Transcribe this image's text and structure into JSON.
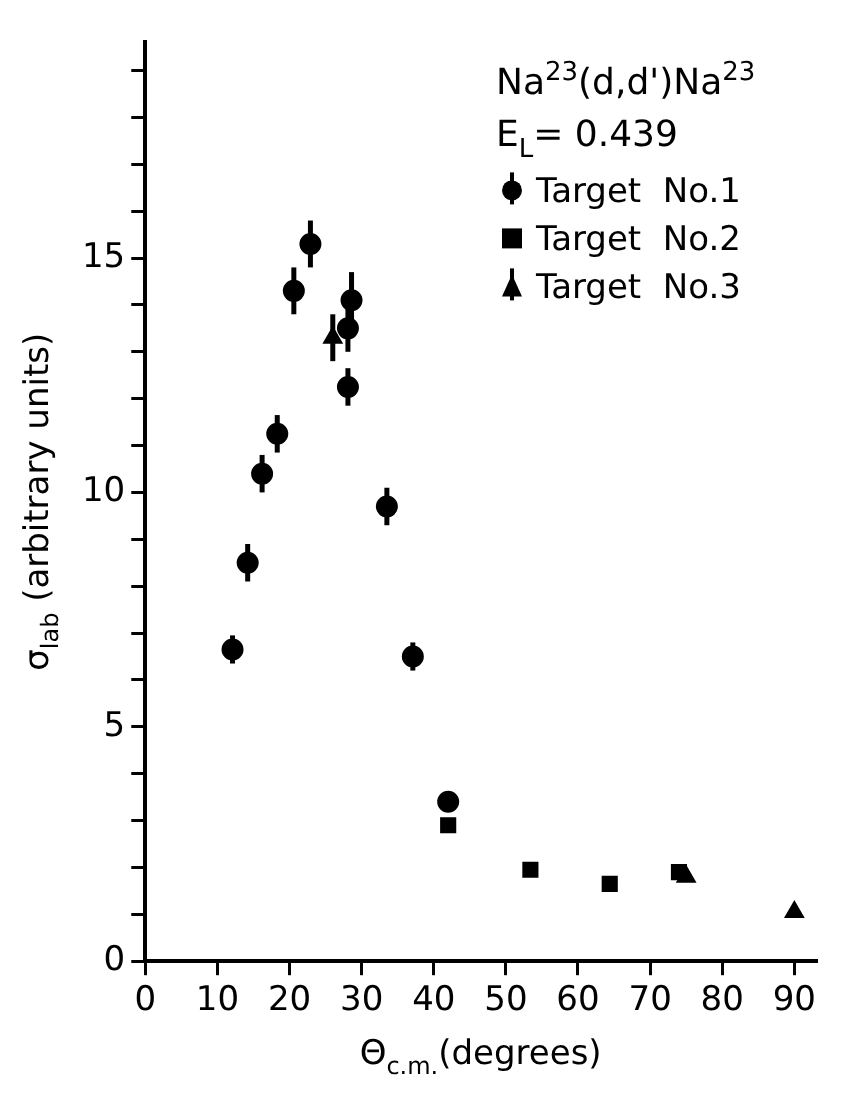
{
  "chart_data": {
    "type": "scatter",
    "xlabel": "Θ$_{c.m.}$(degrees)",
    "ylabel": "σ$_{lab}$ (arbitrary units)",
    "annotations": [
      "Na$^{23}$(d,d')Na$^{23}$",
      "E$_{L}$= 0.439"
    ],
    "series": [
      {
        "name": "Target  No.1",
        "color": "#000000",
        "marker": "circle",
        "x": [
          12.1,
          14.2,
          16.2,
          18.3,
          20.6,
          22.9,
          28.1,
          28.1,
          28.6,
          33.5,
          37.1,
          42.0
        ],
        "values": [
          6.65,
          8.5,
          10.4,
          11.25,
          14.3,
          15.3,
          12.25,
          13.5,
          14.1,
          9.7,
          6.5,
          3.4
        ],
        "errors": [
          0.3,
          0.4,
          0.4,
          0.4,
          0.5,
          0.5,
          0.4,
          0.5,
          0.6,
          0.4,
          0.3,
          null
        ]
      },
      {
        "name": "Target  No.2",
        "color": "#000000",
        "marker": "square",
        "x": [
          42.0,
          53.4,
          64.4,
          74.0
        ],
        "values": [
          2.9,
          1.95,
          1.65,
          1.9
        ]
      },
      {
        "name": "Target  No.3",
        "color": "#000000",
        "marker": "triangle",
        "x": [
          26.0,
          75.0,
          90.0
        ],
        "values": [
          13.3,
          1.8,
          1.05
        ],
        "errors": [
          0.5,
          null,
          null
        ]
      }
    ],
    "xlim": [
      0,
      93
    ],
    "xticks": [
      0,
      10,
      20,
      30,
      40,
      50,
      60,
      70,
      80,
      90
    ],
    "ylim": [
      0,
      19.6
    ],
    "yticks": [
      0,
      {
        "value": 1,
        "label": null
      },
      {
        "value": 2,
        "label": null
      },
      {
        "value": 3,
        "label": null
      },
      {
        "value": 4,
        "label": null
      },
      5,
      {
        "value": 6,
        "label": null
      },
      {
        "value": 7,
        "label": null
      },
      {
        "value": 8,
        "label": null
      },
      {
        "value": 9,
        "label": null
      },
      10,
      {
        "value": 11,
        "label": null
      },
      {
        "value": 12,
        "label": null
      },
      {
        "value": 13,
        "label": null
      },
      {
        "value": 14,
        "label": null
      },
      15,
      {
        "value": 16,
        "label": null
      },
      {
        "value": 17,
        "label": null
      },
      {
        "value": 18,
        "label": null
      },
      {
        "value": 19,
        "label": null
      }
    ],
    "grid": false,
    "legend": "top right"
  }
}
